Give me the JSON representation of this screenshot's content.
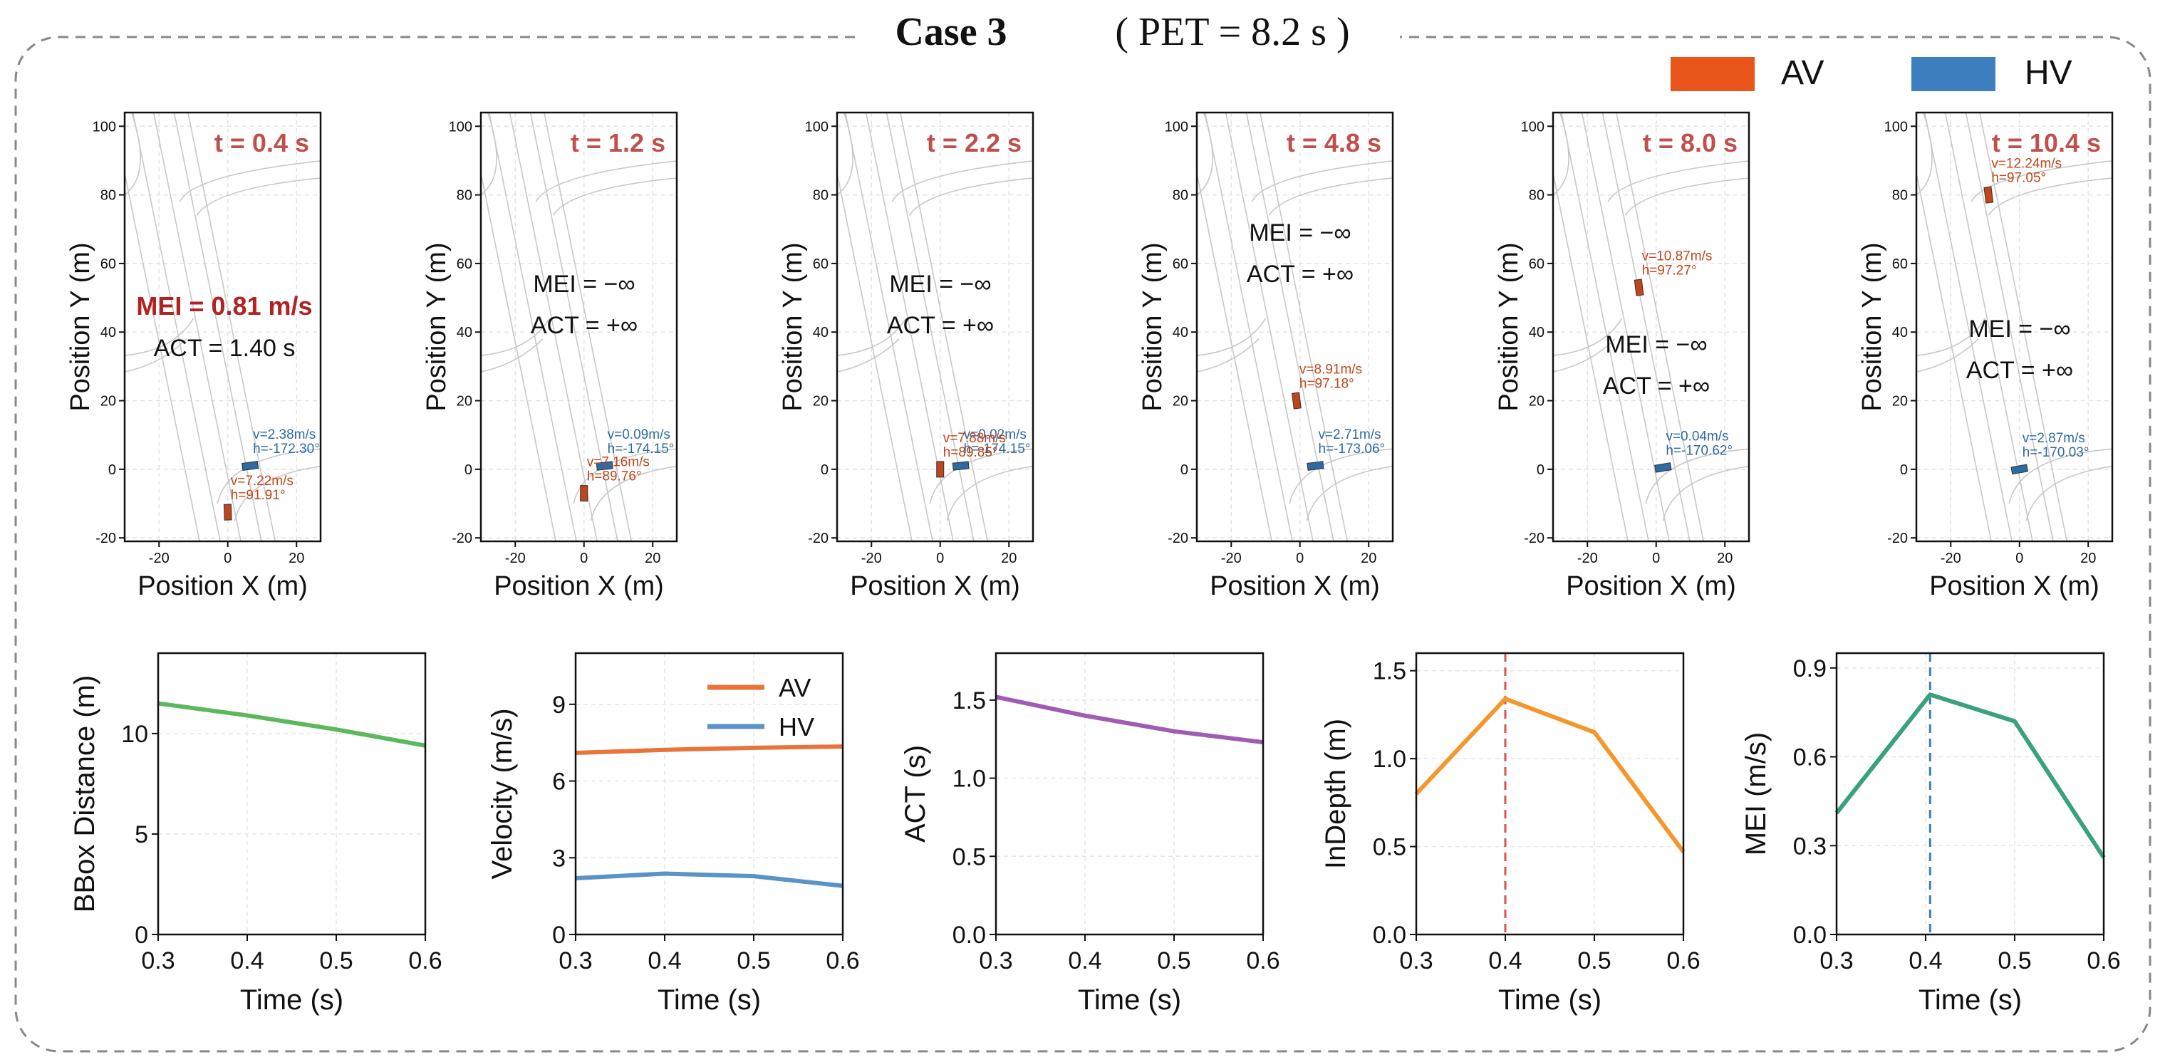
{
  "figure": {
    "case_label": "Case 3",
    "pet_label": "( PET = 8.2 s )",
    "legend": [
      {
        "label": "AV",
        "color": "#e8541a"
      },
      {
        "label": "HV",
        "color": "#3d7ebf"
      }
    ]
  },
  "chart_data": [
    {
      "type": "scatter",
      "panel": "snapshot-1",
      "title": "t = 0.4 s",
      "xlabel": "Position X (m)",
      "ylabel": "Position Y (m)",
      "xlim": [
        -30,
        27
      ],
      "ylim": [
        -21,
        104
      ],
      "xticks": [
        "-20",
        "0",
        "20"
      ],
      "yticks": [
        "-20",
        "0",
        "20",
        "40",
        "60",
        "80",
        "100"
      ],
      "metric_lines": [
        "MEI = 0.81 m/s",
        "ACT = 1.40 s"
      ],
      "metric_highlight": true,
      "vehicles": [
        {
          "name": "HV",
          "x": 6.5,
          "y": 1,
          "heading": -172.3,
          "label_v": "v=2.38m/s",
          "label_h": "h=-172.30°"
        },
        {
          "name": "AV",
          "x": 0,
          "y": -12.5,
          "heading": 91.91,
          "label_v": "v=7.22m/s",
          "label_h": "h=91.91°"
        }
      ]
    },
    {
      "type": "scatter",
      "panel": "snapshot-2",
      "title": "t = 1.2 s",
      "xlabel": "Position X (m)",
      "ylabel": "Position Y (m)",
      "xlim": [
        -30,
        27
      ],
      "ylim": [
        -21,
        104
      ],
      "xticks": [
        "-20",
        "0",
        "20"
      ],
      "yticks": [
        "-20",
        "0",
        "20",
        "40",
        "60",
        "80",
        "100"
      ],
      "metric_lines": [
        "MEI = −∞",
        "ACT = +∞"
      ],
      "metric_highlight": false,
      "vehicles": [
        {
          "name": "HV",
          "x": 6,
          "y": 1,
          "heading": -174.15,
          "label_v": "v=0.09m/s",
          "label_h": "h=-174.15°"
        },
        {
          "name": "AV",
          "x": 0,
          "y": -7,
          "heading": 89.76,
          "label_v": "v=7.16m/s",
          "label_h": "h=89.76°"
        }
      ]
    },
    {
      "type": "scatter",
      "panel": "snapshot-3",
      "title": "t = 2.2 s",
      "xlabel": "Position X (m)",
      "ylabel": "Position Y (m)",
      "xlim": [
        -30,
        27
      ],
      "ylim": [
        -21,
        104
      ],
      "xticks": [
        "-20",
        "0",
        "20"
      ],
      "yticks": [
        "-20",
        "0",
        "20",
        "40",
        "60",
        "80",
        "100"
      ],
      "metric_lines": [
        "MEI = −∞",
        "ACT = +∞"
      ],
      "metric_highlight": false,
      "vehicles": [
        {
          "name": "HV",
          "x": 6,
          "y": 1,
          "heading": -174.15,
          "label_v": "v=0.02m/s",
          "label_h": "h=-174.15°"
        },
        {
          "name": "AV",
          "x": 0,
          "y": 0,
          "heading": 89.85,
          "label_v": "v=7.88m/s",
          "label_h": "h=89.85°"
        }
      ]
    },
    {
      "type": "scatter",
      "panel": "snapshot-4",
      "title": "t = 4.8 s",
      "xlabel": "Position X (m)",
      "ylabel": "Position Y (m)",
      "xlim": [
        -30,
        27
      ],
      "ylim": [
        -21,
        104
      ],
      "xticks": [
        "-20",
        "0",
        "20"
      ],
      "yticks": [
        "-20",
        "0",
        "20",
        "40",
        "60",
        "80",
        "100"
      ],
      "metric_lines": [
        "MEI = −∞",
        "ACT = +∞"
      ],
      "metric_highlight": false,
      "vehicles": [
        {
          "name": "HV",
          "x": 4.5,
          "y": 1,
          "heading": -173.06,
          "label_v": "v=2.71m/s",
          "label_h": "h=-173.06°"
        },
        {
          "name": "AV",
          "x": -1,
          "y": 20,
          "heading": 97.18,
          "label_v": "v=8.91m/s",
          "label_h": "h=97.18°"
        }
      ]
    },
    {
      "type": "scatter",
      "panel": "snapshot-5",
      "title": "t = 8.0 s",
      "xlabel": "Position X (m)",
      "ylabel": "Position Y (m)",
      "xlim": [
        -30,
        27
      ],
      "ylim": [
        -21,
        104
      ],
      "xticks": [
        "-20",
        "0",
        "20"
      ],
      "yticks": [
        "-20",
        "0",
        "20",
        "40",
        "60",
        "80",
        "100"
      ],
      "metric_lines": [
        "MEI = −∞",
        "ACT = +∞"
      ],
      "metric_highlight": false,
      "vehicles": [
        {
          "name": "HV",
          "x": 2,
          "y": 0.5,
          "heading": -170.62,
          "label_v": "v=0.04m/s",
          "label_h": "h=-170.62°"
        },
        {
          "name": "AV",
          "x": -5,
          "y": 53,
          "heading": 97.27,
          "label_v": "v=10.87m/s",
          "label_h": "h=97.27°"
        }
      ]
    },
    {
      "type": "scatter",
      "panel": "snapshot-6",
      "title": "t = 10.4 s",
      "xlabel": "Position X (m)",
      "ylabel": "Position Y (m)",
      "xlim": [
        -30,
        27
      ],
      "ylim": [
        -21,
        104
      ],
      "xticks": [
        "-20",
        "0",
        "20"
      ],
      "yticks": [
        "-20",
        "0",
        "20",
        "40",
        "60",
        "80",
        "100"
      ],
      "metric_lines": [
        "MEI = −∞",
        "ACT = +∞"
      ],
      "metric_highlight": false,
      "vehicles": [
        {
          "name": "HV",
          "x": 0,
          "y": 0,
          "heading": -170.03,
          "label_v": "v=2.87m/s",
          "label_h": "h=-170.03°"
        },
        {
          "name": "AV",
          "x": -9,
          "y": 80,
          "heading": 97.05,
          "label_v": "v=12.24m/s",
          "label_h": "h=97.05°"
        }
      ]
    },
    {
      "type": "line",
      "panel": "bbox-distance",
      "xlabel": "Time (s)",
      "ylabel": "BBox Distance (m)",
      "xlim": [
        0.3,
        0.6
      ],
      "ylim": [
        0,
        14
      ],
      "xticks": [
        "0.3",
        "0.4",
        "0.5",
        "0.6"
      ],
      "yticks": [
        "0",
        "5",
        "10"
      ],
      "series": [
        {
          "name": "BBox Distance",
          "color": "#5cb85c",
          "x": [
            0.3,
            0.4,
            0.5,
            0.6
          ],
          "values": [
            11.5,
            10.9,
            10.2,
            9.4
          ]
        }
      ]
    },
    {
      "type": "line",
      "panel": "velocity",
      "xlabel": "Time (s)",
      "ylabel": "Velocity (m/s)",
      "xlim": [
        0.3,
        0.6
      ],
      "ylim": [
        0,
        11
      ],
      "xticks": [
        "0.3",
        "0.4",
        "0.5",
        "0.6"
      ],
      "yticks": [
        "0",
        "3",
        "6",
        "9"
      ],
      "legend": "top-right",
      "series": [
        {
          "name": "AV",
          "color": "#e8743b",
          "x": [
            0.3,
            0.4,
            0.5,
            0.6
          ],
          "values": [
            7.1,
            7.22,
            7.3,
            7.35
          ]
        },
        {
          "name": "HV",
          "color": "#5a93c6",
          "x": [
            0.3,
            0.4,
            0.5,
            0.6
          ],
          "values": [
            2.2,
            2.38,
            2.28,
            1.9
          ]
        }
      ]
    },
    {
      "type": "line",
      "panel": "act",
      "xlabel": "Time (s)",
      "ylabel": "ACT (s)",
      "xlim": [
        0.3,
        0.6
      ],
      "ylim": [
        0,
        1.8
      ],
      "xticks": [
        "0.3",
        "0.4",
        "0.5",
        "0.6"
      ],
      "yticks": [
        "0.0",
        "0.5",
        "1.0",
        "1.5"
      ],
      "series": [
        {
          "name": "ACT",
          "color": "#a05cb4",
          "x": [
            0.3,
            0.4,
            0.5,
            0.6
          ],
          "values": [
            1.52,
            1.4,
            1.3,
            1.23
          ]
        }
      ]
    },
    {
      "type": "line",
      "panel": "indepth",
      "xlabel": "Time (s)",
      "ylabel": "InDepth (m)",
      "xlim": [
        0.3,
        0.6
      ],
      "ylim": [
        0,
        1.6
      ],
      "xticks": [
        "0.3",
        "0.4",
        "0.5",
        "0.6"
      ],
      "yticks": [
        "0.0",
        "0.5",
        "1.0",
        "1.5"
      ],
      "vline": {
        "x": 0.4,
        "color": "#d9534f"
      },
      "series": [
        {
          "name": "InDepth",
          "color": "#f5962a",
          "x": [
            0.3,
            0.4,
            0.5,
            0.6
          ],
          "values": [
            0.8,
            1.34,
            1.15,
            0.47
          ]
        }
      ]
    },
    {
      "type": "line",
      "panel": "mei",
      "xlabel": "Time (s)",
      "ylabel": "MEI (m/s)",
      "xlim": [
        0.3,
        0.6
      ],
      "ylim": [
        0,
        0.95
      ],
      "xticks": [
        "0.3",
        "0.4",
        "0.5",
        "0.6"
      ],
      "yticks": [
        "0.0",
        "0.3",
        "0.6",
        "0.9"
      ],
      "vline": {
        "x": 0.405,
        "color": "#3a7fb0"
      },
      "series": [
        {
          "name": "MEI",
          "color": "#3aa17e",
          "x": [
            0.3,
            0.405,
            0.5,
            0.6
          ],
          "values": [
            0.41,
            0.81,
            0.72,
            0.26
          ]
        }
      ]
    }
  ]
}
